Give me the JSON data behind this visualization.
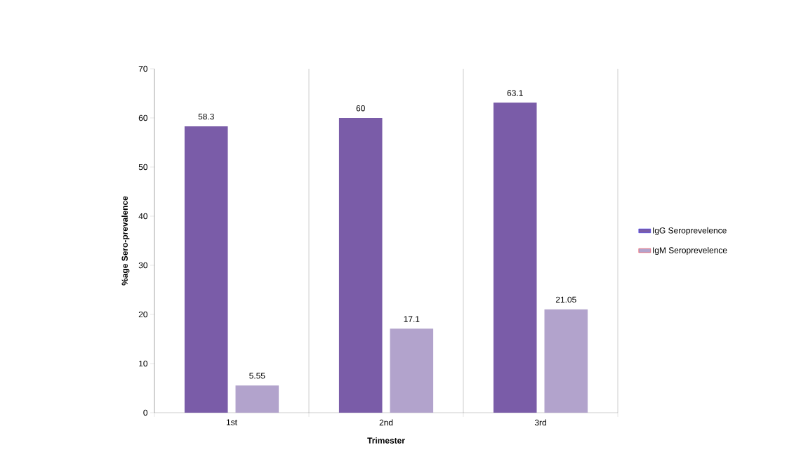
{
  "chart_data": {
    "type": "bar",
    "xlabel": "Trimester",
    "ylabel": "%age Sero-prevalence",
    "categories": [
      "1st",
      "2nd",
      "3rd"
    ],
    "series": [
      {
        "name": "IgG Seroprevelence",
        "color": "#7a5ca8",
        "values": [
          58.3,
          60,
          63.1
        ]
      },
      {
        "name": "IgM Seroprevelence",
        "color": "#b2a3cc",
        "values": [
          5.55,
          17.1,
          21.05
        ]
      }
    ],
    "ylim": [
      0,
      70
    ],
    "yticks": [
      0,
      10,
      20,
      30,
      40,
      50,
      60,
      70
    ],
    "grid": "x",
    "legend": "right",
    "data_labels": true
  }
}
